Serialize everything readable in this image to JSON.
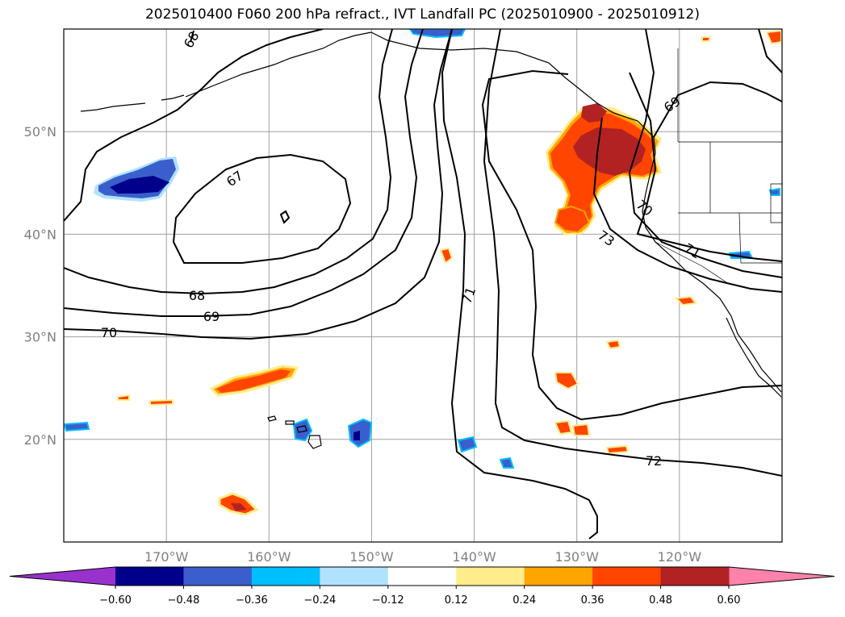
{
  "title": "2025010400 F060 200 hPa refract., IVT Landfall PC (2025010900 - 2025010912)",
  "map": {
    "projection": "lat-lon",
    "lon_range": [
      -180,
      -110
    ],
    "lat_range": [
      10,
      60
    ],
    "lat_ticks": [
      {
        "value": 20,
        "label": "20°N"
      },
      {
        "value": 30,
        "label": "30°N"
      },
      {
        "value": 40,
        "label": "40°N"
      },
      {
        "value": 50,
        "label": "50°N"
      }
    ],
    "lon_ticks": [
      {
        "value": -170,
        "label": "170°W"
      },
      {
        "value": -160,
        "label": "160°W"
      },
      {
        "value": -150,
        "label": "150°W"
      },
      {
        "value": -140,
        "label": "140°W"
      },
      {
        "value": -130,
        "label": "130°W"
      },
      {
        "value": -120,
        "label": "120°W"
      }
    ],
    "gridlines": true,
    "contour_labels": [
      "67",
      "68",
      "69",
      "70",
      "71",
      "73",
      "71",
      "72",
      "69",
      "70",
      "68"
    ],
    "fill_regions": [
      {
        "id": "nw-bc-coast-pos",
        "sign": "positive",
        "max_class": "0.48 to 0.60"
      },
      {
        "id": "central-pacific-neg",
        "sign": "negative",
        "max_class": "-0.60 to -0.48"
      },
      {
        "id": "subtropical-pos",
        "sign": "positive",
        "max_class": "0.36 to 0.48"
      }
    ]
  },
  "colorbar": {
    "extend": "both",
    "levels": [
      -0.72,
      -0.6,
      -0.48,
      -0.36,
      -0.24,
      -0.12,
      0.12,
      0.24,
      0.36,
      0.48,
      0.6,
      0.72
    ],
    "colors": [
      "#9932cc",
      "#00008b",
      "#3a5fcd",
      "#00bfff",
      "#b0e2ff",
      "#ffffff",
      "#ffec8b",
      "#ffa500",
      "#ff4500",
      "#b22222",
      "#ff82ab"
    ],
    "tick_labels": [
      "−0.60",
      "−0.48",
      "−0.36",
      "−0.24",
      "−0.12",
      "0.12",
      "0.24",
      "0.36",
      "0.48",
      "0.60"
    ]
  }
}
